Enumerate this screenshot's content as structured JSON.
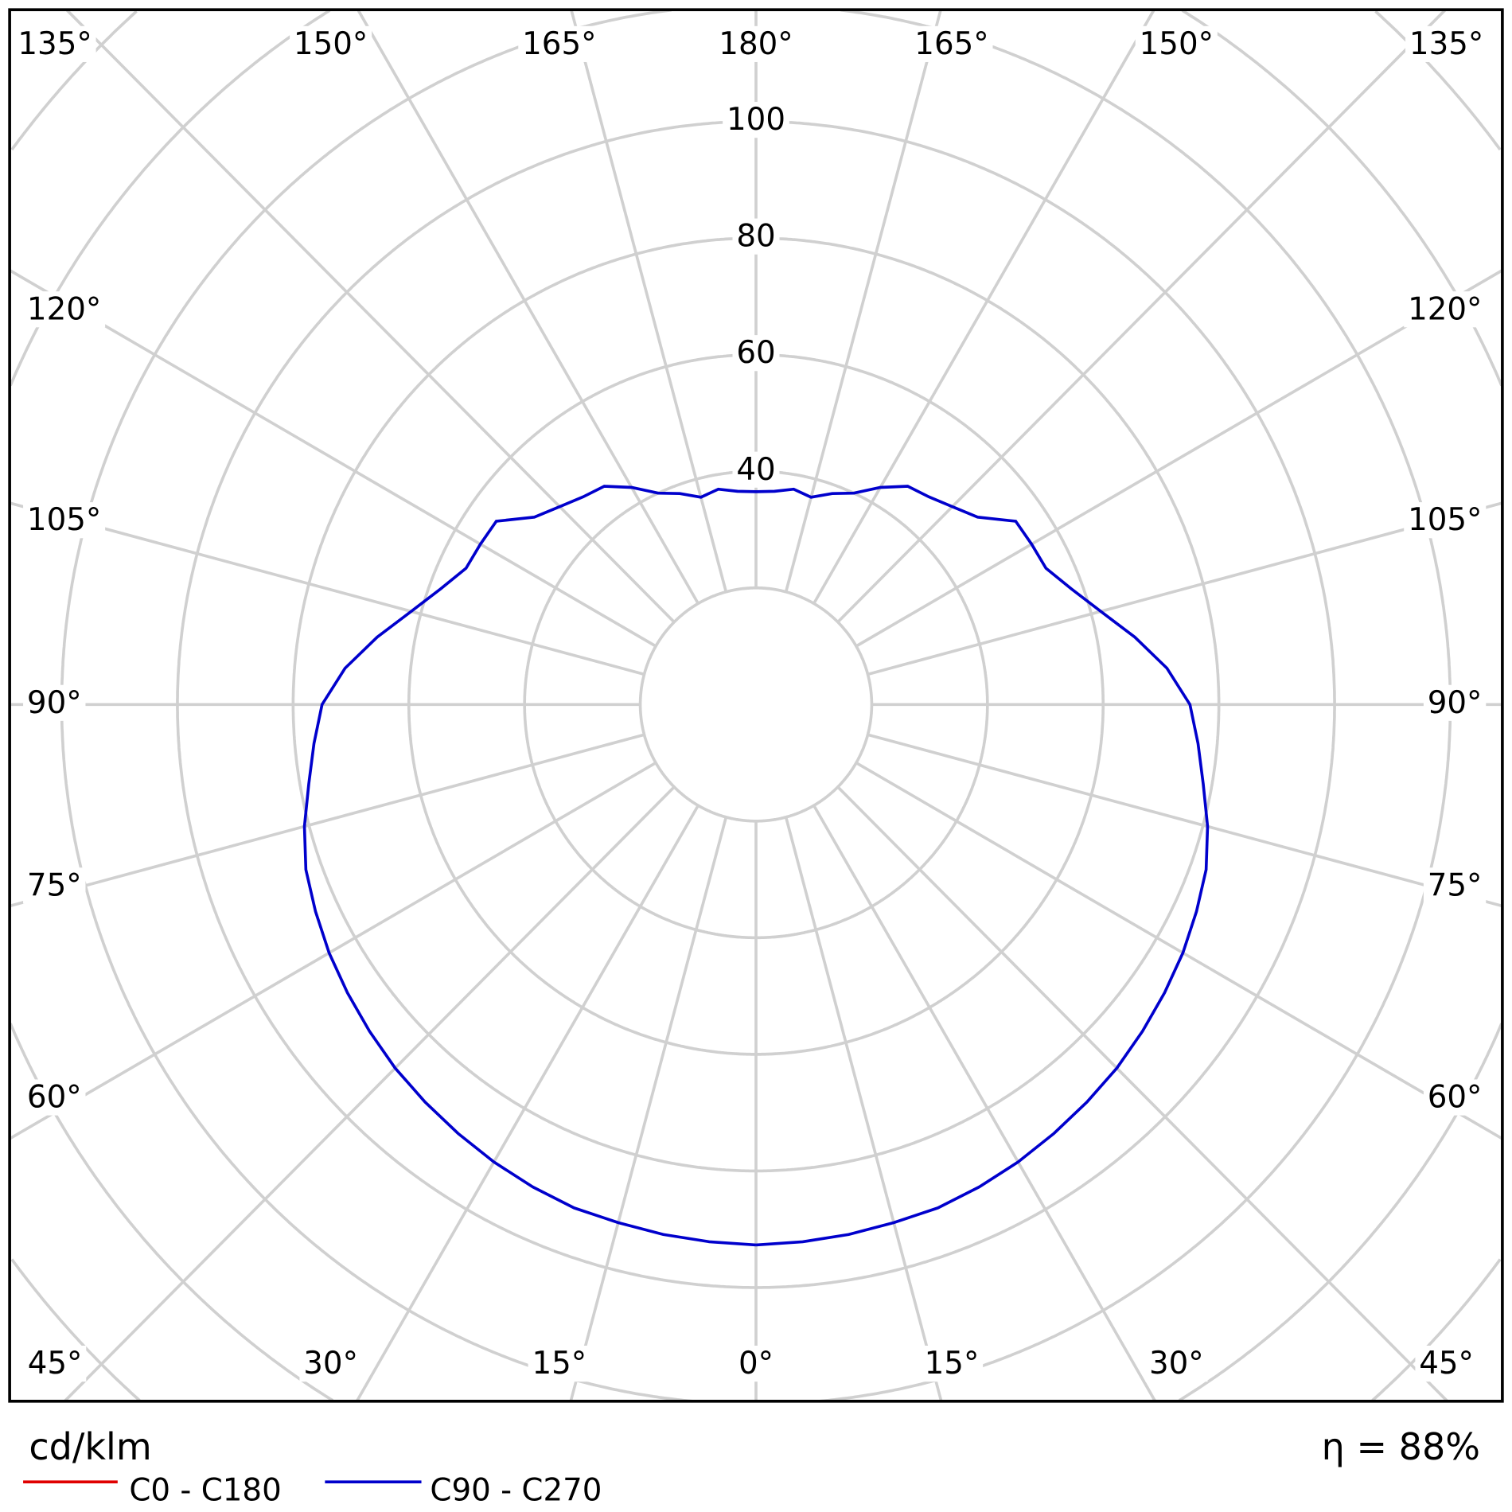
{
  "chart_data": {
    "type": "polar",
    "unit_label": "cd/klm",
    "efficiency_label": "η = 88%",
    "radial_ticks": [
      40,
      60,
      80,
      100
    ],
    "radial_tick_labels": [
      "40",
      "60",
      "80",
      "100"
    ],
    "radial_grid": [
      20,
      40,
      60,
      80,
      100,
      120,
      140,
      160,
      180,
      200
    ],
    "angle_labels": {
      "top": [
        "135°",
        "150°",
        "165°",
        "180°",
        "165°",
        "150°",
        "135°"
      ],
      "left": [
        "120°",
        "105°",
        "90°",
        "75°",
        "60°"
      ],
      "right": [
        "120°",
        "105°",
        "90°",
        "75°",
        "60°"
      ],
      "bottom": [
        "45°",
        "30°",
        "15°",
        "0°",
        "15°",
        "30°",
        "45°"
      ]
    },
    "grid": true,
    "legend_placement": "bottom-left",
    "series": [
      {
        "name": "C0 - C180",
        "color": "#e00000",
        "angles": [],
        "values": []
      },
      {
        "name": "C90 - C270",
        "color": "#0000cc",
        "angles": [
          0,
          5,
          10,
          15,
          20,
          25,
          30,
          35,
          40,
          45,
          50,
          55,
          60,
          65,
          70,
          75,
          80,
          85,
          90,
          95,
          100,
          105,
          110,
          115,
          120,
          125,
          130,
          135,
          140,
          145,
          150,
          155,
          160,
          165,
          170,
          175,
          180
        ],
        "values": [
          92.7,
          92.5,
          92.3,
          92.0,
          91.9,
          91.3,
          90.6,
          89.8,
          89.0,
          88.2,
          87.2,
          86.2,
          85.2,
          84.0,
          82.8,
          80.8,
          78.5,
          76.7,
          75.0,
          71.3,
          66.5,
          61.7,
          58.0,
          55.3,
          55.0,
          54.8,
          50.0,
          48.0,
          46.5,
          45.7,
          43.0,
          40.0,
          38.5,
          36.8,
          37.5,
          36.7,
          36.5
        ]
      }
    ]
  }
}
